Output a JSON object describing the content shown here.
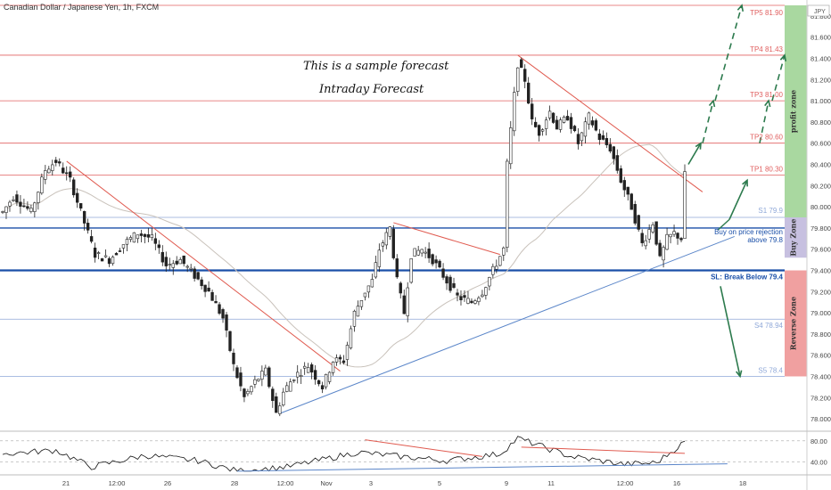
{
  "header": {
    "title": "Canadian Dollar / Japanese Yen, 1h, FXCM",
    "currency": "JPY"
  },
  "annotations": {
    "forecast_line1": "This is a sample forecast",
    "forecast_line2": "Intraday Forecast"
  },
  "chart_data": {
    "type": "candlestick",
    "price_axis": {
      "ylim": [
        77.9,
        81.9
      ],
      "ticks": [
        "81.800",
        "81.600",
        "81.400",
        "81.200",
        "81.000",
        "80.800",
        "80.600",
        "80.400",
        "80.200",
        "80.000",
        "79.800",
        "79.600",
        "79.400",
        "79.200",
        "79.000",
        "78.800",
        "78.600",
        "78.400",
        "78.200",
        "78.000"
      ],
      "tick_values": [
        81.8,
        81.6,
        81.4,
        81.2,
        81.0,
        80.8,
        80.6,
        80.4,
        80.2,
        80.0,
        79.8,
        79.6,
        79.4,
        79.2,
        79.0,
        78.8,
        78.6,
        78.4,
        78.2,
        78.0
      ]
    },
    "time_axis": {
      "labels": [
        "21",
        "12:00",
        "26",
        "28",
        "12:00",
        "Nov",
        "3",
        "5",
        "9",
        "11",
        "12:00",
        "16",
        "18"
      ]
    },
    "levels": [
      {
        "label": "TP5 81.90",
        "value": 81.9,
        "color": "#e06060"
      },
      {
        "label": "TP4 81.43",
        "value": 81.43,
        "color": "#e06060"
      },
      {
        "label": "TP3 81.00",
        "value": 81.0,
        "color": "#e06060"
      },
      {
        "label": "TP2 80.60",
        "value": 80.6,
        "color": "#e06060"
      },
      {
        "label": "TP1 80.30",
        "value": 80.3,
        "color": "#e06060"
      },
      {
        "label": "S1 79.9",
        "value": 79.9,
        "color": "#8fa8d8"
      },
      {
        "label": "Buy on price rejection",
        "value": 79.8,
        "color": "#1a4fa8"
      },
      {
        "label": "above 79.8",
        "value": 79.8,
        "color": "#1a4fa8"
      },
      {
        "label": "SL: Break Below 79.4",
        "value": 79.4,
        "color": "#1a4fa8"
      },
      {
        "label": "S4 78.94",
        "value": 78.94,
        "color": "#8fa8d8"
      },
      {
        "label": "S5 78.4",
        "value": 78.4,
        "color": "#8fa8d8"
      }
    ],
    "zones": [
      {
        "label": "profit zone",
        "from": 79.9,
        "to": 81.9,
        "color": "#a9d8a0"
      },
      {
        "label": "Buy Zone",
        "from": 79.52,
        "to": 79.9,
        "color": "#c7c0e0"
      },
      {
        "label": "Reverse Zone",
        "from": 78.4,
        "to": 79.4,
        "color": "#f0a0a0"
      }
    ],
    "anchors": [
      {
        "i": 0,
        "price": 79.95
      },
      {
        "i": 3,
        "price": 80.1
      },
      {
        "i": 8,
        "price": 79.95
      },
      {
        "i": 12,
        "price": 80.35
      },
      {
        "i": 15,
        "price": 80.43
      },
      {
        "i": 19,
        "price": 80.25
      },
      {
        "i": 23,
        "price": 79.85
      },
      {
        "i": 26,
        "price": 79.55
      },
      {
        "i": 30,
        "price": 79.5
      },
      {
        "i": 34,
        "price": 79.65
      },
      {
        "i": 38,
        "price": 79.75
      },
      {
        "i": 42,
        "price": 79.7
      },
      {
        "i": 46,
        "price": 79.45
      },
      {
        "i": 50,
        "price": 79.5
      },
      {
        "i": 54,
        "price": 79.35
      },
      {
        "i": 58,
        "price": 79.2
      },
      {
        "i": 62,
        "price": 78.95
      },
      {
        "i": 65,
        "price": 78.5
      },
      {
        "i": 68,
        "price": 78.2
      },
      {
        "i": 71,
        "price": 78.35
      },
      {
        "i": 74,
        "price": 78.45
      },
      {
        "i": 77,
        "price": 78.05
      },
      {
        "i": 79,
        "price": 78.25
      },
      {
        "i": 82,
        "price": 78.4
      },
      {
        "i": 86,
        "price": 78.5
      },
      {
        "i": 90,
        "price": 78.3
      },
      {
        "i": 93,
        "price": 78.55
      },
      {
        "i": 96,
        "price": 78.55
      },
      {
        "i": 99,
        "price": 79.0
      },
      {
        "i": 102,
        "price": 79.2
      },
      {
        "i": 104,
        "price": 79.3
      },
      {
        "i": 106,
        "price": 79.6
      },
      {
        "i": 109,
        "price": 79.8
      },
      {
        "i": 111,
        "price": 79.3
      },
      {
        "i": 113,
        "price": 79.0
      },
      {
        "i": 115,
        "price": 79.55
      },
      {
        "i": 118,
        "price": 79.6
      },
      {
        "i": 121,
        "price": 79.5
      },
      {
        "i": 124,
        "price": 79.35
      },
      {
        "i": 128,
        "price": 79.15
      },
      {
        "i": 132,
        "price": 79.1
      },
      {
        "i": 135,
        "price": 79.2
      },
      {
        "i": 138,
        "price": 79.4
      },
      {
        "i": 141,
        "price": 79.6
      },
      {
        "i": 142,
        "price": 80.4
      },
      {
        "i": 144,
        "price": 81.05
      },
      {
        "i": 145,
        "price": 81.35
      },
      {
        "i": 147,
        "price": 81.2
      },
      {
        "i": 149,
        "price": 80.8
      },
      {
        "i": 151,
        "price": 80.7
      },
      {
        "i": 154,
        "price": 80.9
      },
      {
        "i": 156,
        "price": 80.75
      },
      {
        "i": 159,
        "price": 80.85
      },
      {
        "i": 162,
        "price": 80.6
      },
      {
        "i": 165,
        "price": 80.85
      },
      {
        "i": 168,
        "price": 80.65
      },
      {
        "i": 171,
        "price": 80.55
      },
      {
        "i": 174,
        "price": 80.25
      },
      {
        "i": 177,
        "price": 80.0
      },
      {
        "i": 180,
        "price": 79.65
      },
      {
        "i": 183,
        "price": 79.85
      },
      {
        "i": 185,
        "price": 79.5
      },
      {
        "i": 187,
        "price": 79.7
      },
      {
        "i": 189,
        "price": 79.75
      },
      {
        "i": 191,
        "price": 79.7
      },
      {
        "i": 192,
        "price": 80.3
      }
    ],
    "candle_count": 193,
    "rsi": {
      "ticks": [
        "80.00",
        "40.00"
      ],
      "tick_values": [
        80,
        40
      ],
      "anchors": [
        {
          "i": 0,
          "v": 55
        },
        {
          "i": 15,
          "v": 62
        },
        {
          "i": 25,
          "v": 30
        },
        {
          "i": 40,
          "v": 52
        },
        {
          "i": 55,
          "v": 42
        },
        {
          "i": 66,
          "v": 22
        },
        {
          "i": 80,
          "v": 30
        },
        {
          "i": 100,
          "v": 58
        },
        {
          "i": 112,
          "v": 50
        },
        {
          "i": 125,
          "v": 42
        },
        {
          "i": 140,
          "v": 55
        },
        {
          "i": 145,
          "v": 85
        },
        {
          "i": 160,
          "v": 50
        },
        {
          "i": 175,
          "v": 35
        },
        {
          "i": 184,
          "v": 38
        },
        {
          "i": 192,
          "v": 78
        }
      ]
    }
  }
}
